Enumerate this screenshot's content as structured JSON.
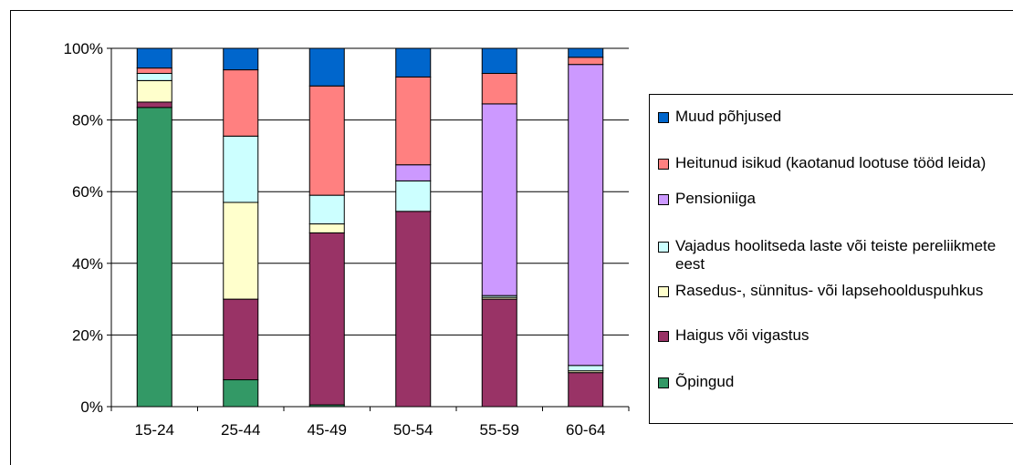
{
  "chart_data": {
    "type": "bar",
    "stacked": true,
    "categories": [
      "15-24",
      "25-44",
      "45-49",
      "50-54",
      "55-59",
      "60-64"
    ],
    "ylim": [
      0,
      100
    ],
    "yticks": [
      "0%",
      "20%",
      "40%",
      "60%",
      "80%",
      "100%"
    ],
    "grid": true,
    "legend_position": "right",
    "series": [
      {
        "name": "Õpingud",
        "color": "#339966",
        "values": [
          83.5,
          7.5,
          0.5,
          0,
          0,
          0
        ]
      },
      {
        "name": "Haigus või vigastus",
        "color": "#993366",
        "values": [
          1.5,
          22.5,
          48,
          54.5,
          30,
          9.5
        ]
      },
      {
        "name": "Rasedus-, sünnitus- või lapsehoolduspuhkus",
        "color": "#FFFFCC",
        "values": [
          6,
          27,
          2.5,
          0,
          0.5,
          0.5
        ]
      },
      {
        "name": "Vajadus hoolitseda laste või teiste pereliikmete eest",
        "color": "#CCFFFF",
        "values": [
          2,
          18.5,
          8,
          8.5,
          0.5,
          1.5
        ]
      },
      {
        "name": "Pensioniiga",
        "color": "#CC99FF",
        "values": [
          0,
          0,
          0,
          4.5,
          53.5,
          84
        ]
      },
      {
        "name": "Heitunud isikud (kaotanud lootuse tööd leida)",
        "color": "#FF8080",
        "values": [
          1.5,
          18.5,
          30.5,
          24.5,
          8.5,
          2
        ]
      },
      {
        "name": "Muud põhjused",
        "color": "#0066CC",
        "values": [
          5.5,
          6,
          10.5,
          8,
          7,
          2.5
        ]
      }
    ]
  }
}
